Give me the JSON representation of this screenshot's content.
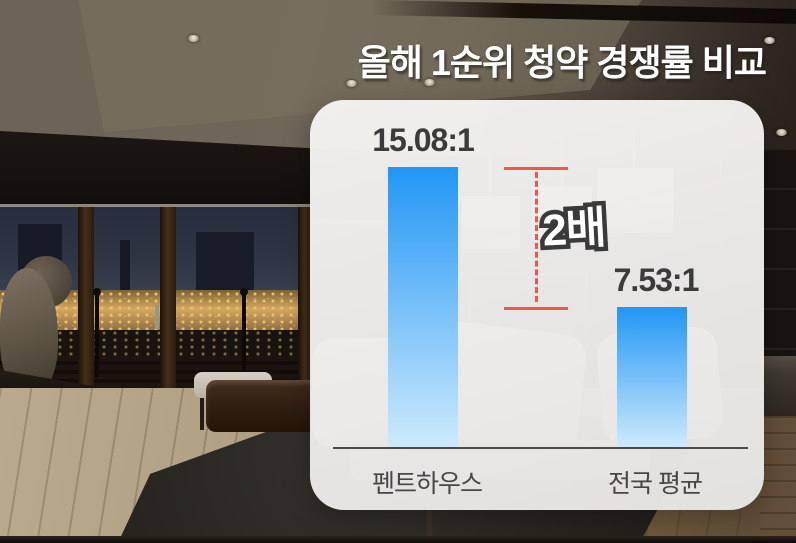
{
  "header": {
    "title": "올해 1순위 청약 경쟁률 비교"
  },
  "chart_data": {
    "type": "bar",
    "title": "올해 1순위 청약 경쟁률 비교",
    "categories": [
      "펜트하우스",
      "전국 평균"
    ],
    "values": [
      15.08,
      7.53
    ],
    "value_labels": [
      "15.08:1",
      "7.53:1"
    ],
    "annotation": "2배",
    "ylim": [
      0,
      16.5
    ],
    "grid": false,
    "legend": false,
    "orientation": "vertical"
  },
  "colors": {
    "bar_top": "#2196f5",
    "bar_bottom": "#cdeafd",
    "measure": "#f0564a",
    "value_text": "#3b3b3b",
    "category_text": "#474747",
    "axis": "#4a4a4a",
    "title_text": "#ffffff",
    "panel_background": "rgba(238,237,235,0.85)"
  }
}
